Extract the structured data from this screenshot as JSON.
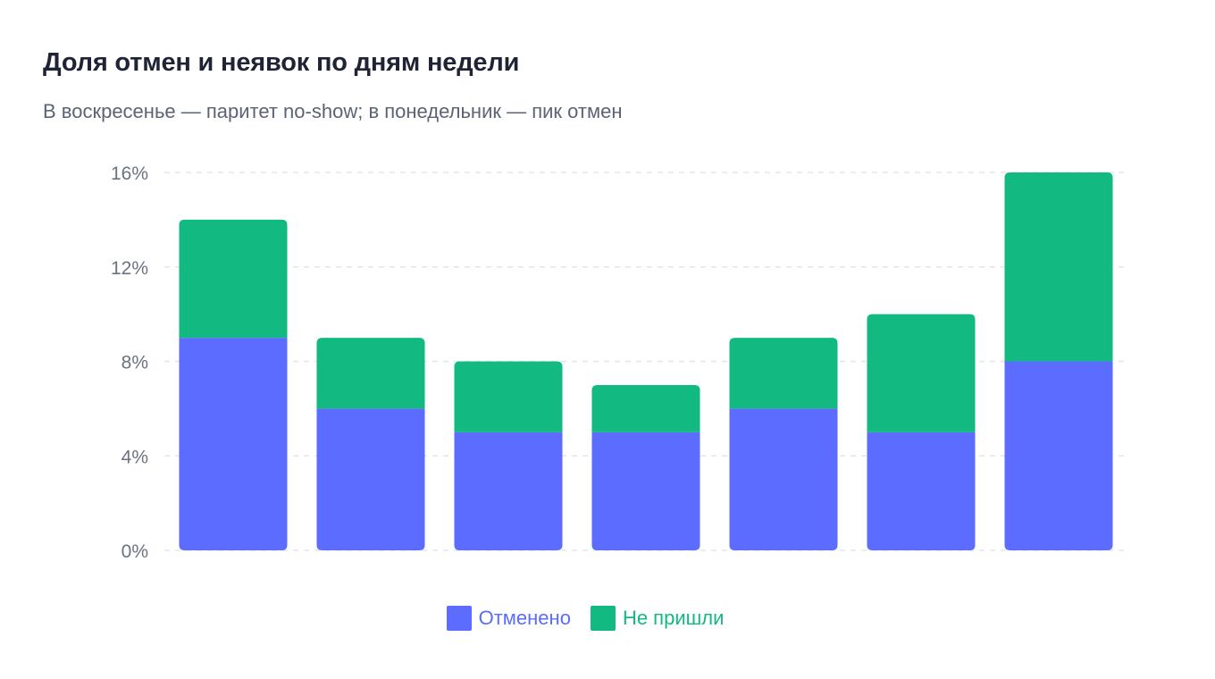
{
  "header": {
    "title": "Доля отмен и неявок по дням недели",
    "subtitle": "В воскресенье — паритет no-show; в понедельник — пик отмен"
  },
  "chart_data": {
    "type": "bar",
    "stacked": true,
    "categories": [
      "",
      "",
      "",
      "",
      "",
      "",
      ""
    ],
    "series": [
      {
        "name": "Отменено",
        "color": "#5b6cff",
        "values": [
          9,
          6,
          5,
          5,
          6,
          5,
          8
        ]
      },
      {
        "name": "Не пришли",
        "color": "#12b981",
        "values": [
          5,
          3,
          3,
          2,
          3,
          5,
          8
        ]
      }
    ],
    "y_ticks": [
      "0%",
      "4%",
      "8%",
      "12%",
      "16%"
    ],
    "ylim": [
      0,
      16
    ],
    "grid": true,
    "legend": "bottom-center"
  }
}
